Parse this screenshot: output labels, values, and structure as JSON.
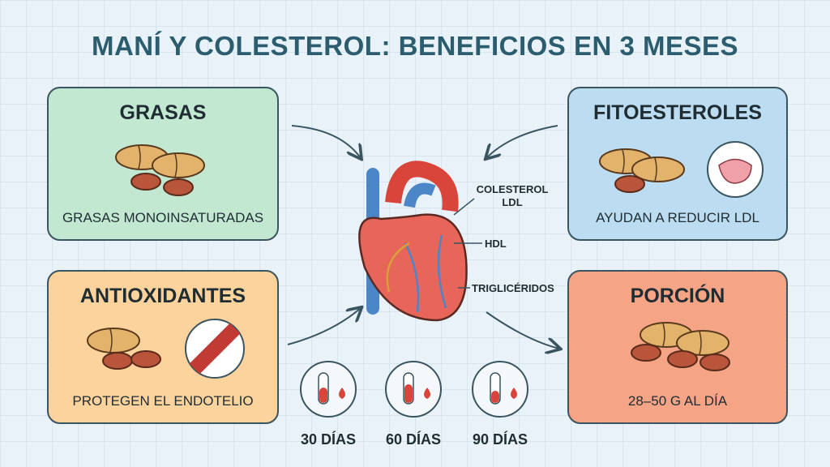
{
  "title": "MANÍ Y COLESTEROL: BENEFICIOS EN 3 MESES",
  "cards": [
    {
      "title": "GRASAS",
      "text": "GRASAS MONOINSATURADAS"
    },
    {
      "title": "FITOESTEROLES",
      "text": "AYUDAN A REDUCIR LDL"
    },
    {
      "title": "ANTIOXIDANTES",
      "text": "PROTEGEN EL ENDOTELIO"
    },
    {
      "title": "PORCIÓN",
      "text": "28–50 G AL DÍA"
    }
  ],
  "heart_labels": {
    "ldl": [
      "COLESTEROL",
      "LDL"
    ],
    "hdl": "HDL",
    "triglycerides": "TRIGLICÉRIDOS"
  },
  "timeline": [
    "30 DÍAS",
    "60 DÍAS",
    "90 DÍAS"
  ]
}
